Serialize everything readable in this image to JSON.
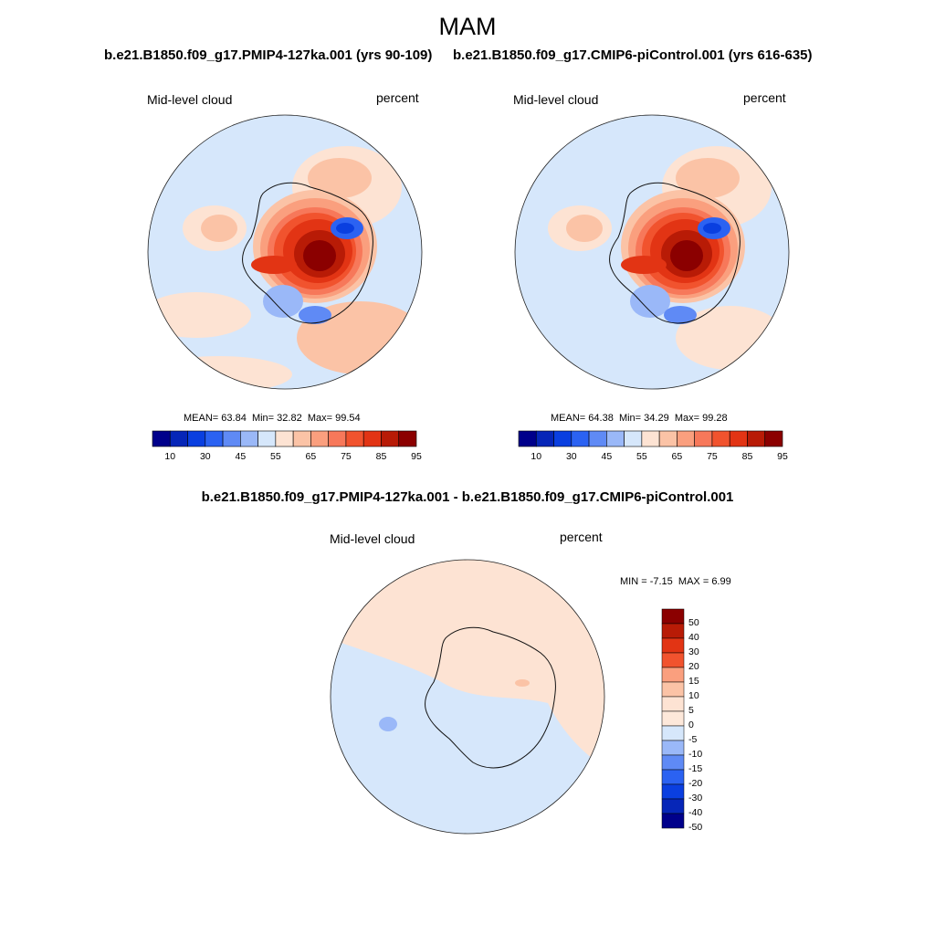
{
  "title": "MAM",
  "variable": "Mid-level cloud",
  "units": "percent",
  "palette": {
    "lvl10": "#00008b",
    "lvl20": "#0626b8",
    "lvl30": "#0a3fe0",
    "lvl40": "#2b62f2",
    "lvl45": "#5f8af5",
    "lvl50": "#9ab8f8",
    "lvl55": "#d6e7fb",
    "lvl60": "#fde3d3",
    "lvl65": "#fbc3a6",
    "lvl70": "#fa9f7e",
    "lvl75": "#f7785a",
    "lvl80": "#f1532e",
    "lvl85": "#e23414",
    "lvl90": "#b81b06",
    "lvl95": "#8b0000",
    "coast": "#111111",
    "frame": "#222222"
  },
  "panels": [
    {
      "title": "b.e21.B1850.f09_g17.PMIP4-127ka.001 (yrs 90-109)",
      "variable": "Mid-level cloud",
      "units": "percent",
      "stats": {
        "mean_label": "MEAN=",
        "mean": "63.84",
        "min_label": "Min=",
        "min": "32.82",
        "max_label": "Max=",
        "max": "99.54"
      }
    },
    {
      "title": "b.e21.B1850.f09_g17.CMIP6-piControl.001 (yrs 616-635)",
      "variable": "Mid-level cloud",
      "units": "percent",
      "stats": {
        "mean_label": "MEAN=",
        "mean": "64.38",
        "min_label": "Min=",
        "min": "34.29",
        "max_label": "Max=",
        "max": "99.28"
      }
    },
    {
      "title": "b.e21.B1850.f09_g17.PMIP4-127ka.001 - b.e21.B1850.f09_g17.CMIP6-piControl.001",
      "variable": "Mid-level cloud",
      "units": "percent",
      "stats": {
        "min_label": "MIN =",
        "min": "-7.15",
        "max_label": "MAX =",
        "max": "6.99"
      }
    }
  ],
  "colorbar": {
    "levels": [
      10,
      20,
      30,
      40,
      45,
      50,
      55,
      60,
      65,
      70,
      75,
      80,
      85,
      90,
      95
    ],
    "tick_labels": [
      "10",
      "30",
      "45",
      "55",
      "65",
      "75",
      "85",
      "95"
    ]
  },
  "diff_colorbar": {
    "tick_labels": [
      "50",
      "40",
      "30",
      "20",
      "15",
      "10",
      "5",
      "0",
      "-5",
      "-10",
      "-15",
      "-20",
      "-30",
      "-40",
      "-50"
    ],
    "colors": [
      "#8b0000",
      "#b81b06",
      "#e23414",
      "#f1532e",
      "#fa9f7e",
      "#fbc3a6",
      "#fde3d3",
      "#fde8da",
      "#d6e7fb",
      "#9ab8f8",
      "#5f8af5",
      "#2b62f2",
      "#0a3fe0",
      "#0626b8",
      "#00008b"
    ]
  }
}
